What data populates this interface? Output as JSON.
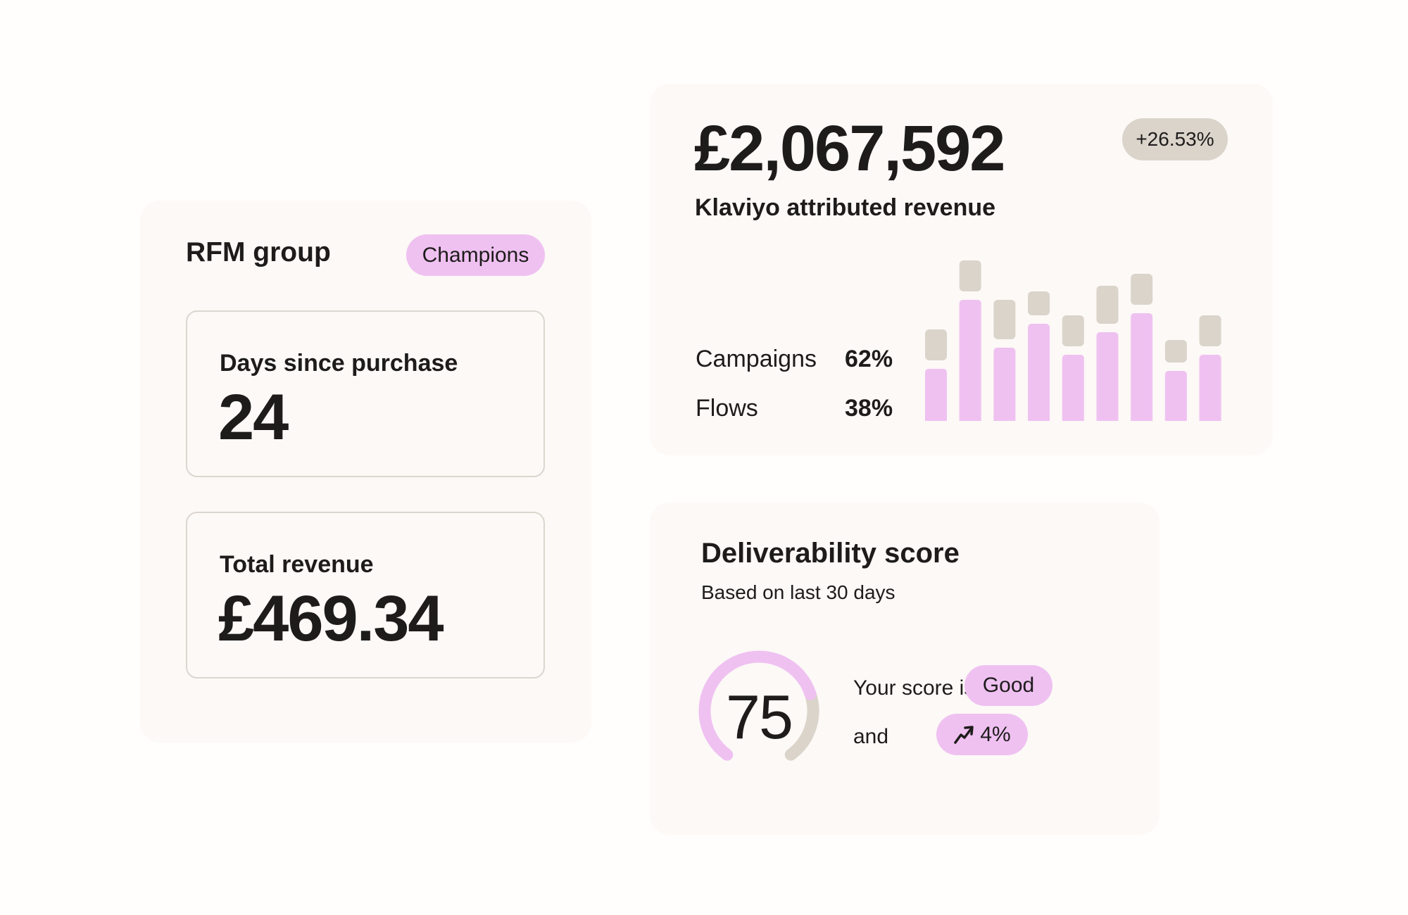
{
  "rfm": {
    "title": "RFM group",
    "badge": "Champions",
    "days_label": "Days since purchase",
    "days_value": "24",
    "revenue_label": "Total revenue",
    "revenue_value": "£469.34"
  },
  "revenue": {
    "amount": "£2,067,592",
    "change": "+26.53%",
    "label": "Klaviyo attributed revenue",
    "breakdown": [
      {
        "name": "Campaigns",
        "value": "62%"
      },
      {
        "name": "Flows",
        "value": "38%"
      }
    ]
  },
  "chart_data": {
    "type": "bar",
    "stacked": true,
    "series": [
      {
        "values": [
          74,
          172,
          104,
          138,
          94,
          126,
          153,
          71,
          94
        ],
        "color": "#efc1f1"
      },
      {
        "values": [
          44,
          44,
          56,
          34,
          44,
          54,
          44,
          32,
          44
        ],
        "color": "#dad4cb"
      }
    ]
  },
  "deliverability": {
    "title": "Deliverability score",
    "subtitle": "Based on last 30 days",
    "score": "75",
    "score_fraction": 0.75,
    "score_text": "Your score is",
    "rating": "Good",
    "and_text": "and",
    "trend_icon": "trending-up-icon",
    "trend_value": "4%"
  },
  "colors": {
    "pink": "#efc1f1",
    "gray": "#dad4cb",
    "card": "#fcf9f6",
    "text": "#1e1c1b"
  }
}
